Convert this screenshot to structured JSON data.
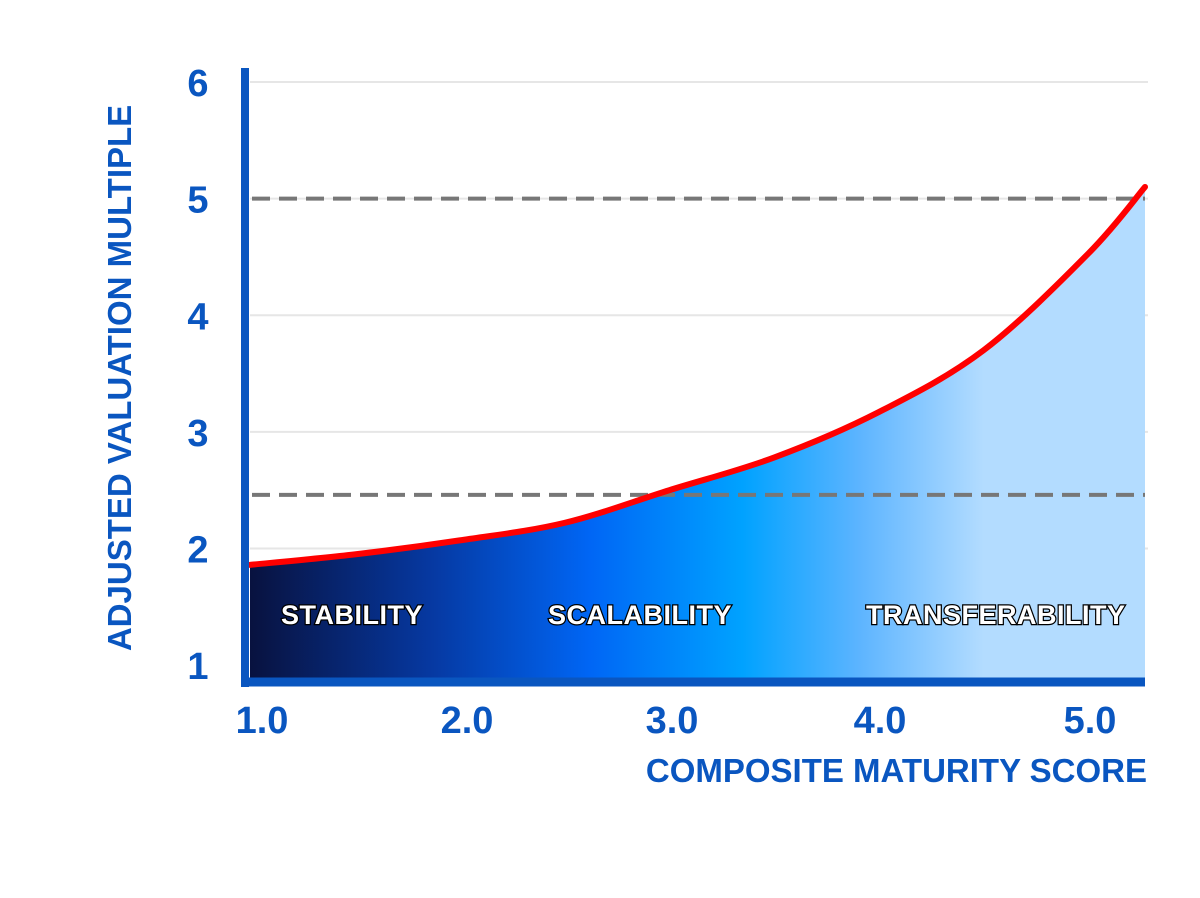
{
  "chart_data": {
    "type": "area",
    "title": "",
    "xlabel": "COMPOSITE MATURITY SCORE",
    "ylabel": "ADJUSTED VALUATION MULTIPLE",
    "xlim": [
      1.0,
      5.27
    ],
    "ylim": [
      0.83,
      6.12
    ],
    "x_ticks": [
      "1.0",
      "2.0",
      "3.0",
      "4.0",
      "5.0"
    ],
    "x_tick_values": [
      1,
      2,
      3,
      4,
      5
    ],
    "y_ticks": [
      "1",
      "2",
      "3",
      "4",
      "5",
      "6"
    ],
    "y_tick_values": [
      1,
      2,
      3,
      4,
      5,
      6
    ],
    "grid": true,
    "series": [
      {
        "x": [
          1.0,
          1.5,
          2.0,
          2.5,
          3.0,
          3.5,
          4.0,
          4.5,
          5.0,
          5.27
        ],
        "y": [
          1.86,
          1.95,
          2.07,
          2.22,
          2.5,
          2.78,
          3.17,
          3.7,
          4.53,
          5.1
        ],
        "line_color": "#ff0000"
      }
    ],
    "reference_lines": [
      {
        "y": 5.0,
        "style": "dashed",
        "color": "#777777"
      },
      {
        "y": 2.46,
        "style": "dashed",
        "color": "#777777"
      }
    ],
    "zones": [
      {
        "label": "STABILITY",
        "color": "#0a1a4a"
      },
      {
        "label": "SCALABILITY",
        "color": "#0070ff"
      },
      {
        "label": "TRANSFERABILITY",
        "color": "#b3dcff"
      }
    ],
    "axis_color": "#0a56c0"
  }
}
